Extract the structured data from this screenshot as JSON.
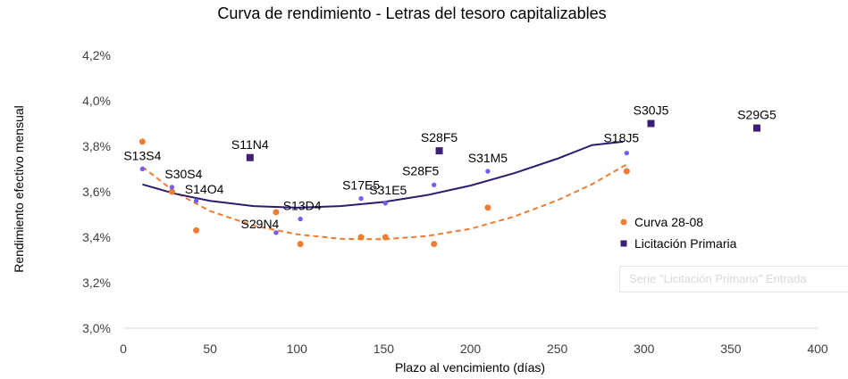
{
  "chart_data": {
    "type": "scatter",
    "title": "Curva de rendimiento  - Letras del tesoro capitalizables",
    "xlabel": "Plazo al vencimiento (días)",
    "ylabel": "Rendimiento efectivo mensual",
    "xlim": [
      0,
      400
    ],
    "ylim": [
      3.0,
      4.2
    ],
    "x_ticks": [
      0,
      50,
      100,
      150,
      200,
      250,
      300,
      350,
      400
    ],
    "x_tick_labels": [
      "0",
      "50",
      "100",
      "150",
      "200",
      "250",
      "300",
      "350",
      "400"
    ],
    "y_ticks": [
      3.0,
      3.2,
      3.4,
      3.6,
      3.8,
      4.0,
      4.2
    ],
    "y_tick_labels": [
      "3,0%",
      "3,2%",
      "3,4%",
      "3,6%",
      "3,8%",
      "4,0%",
      "4,2%"
    ],
    "grid": false,
    "legend_position": "right",
    "series": [
      {
        "name": "Curva 28-08",
        "marker": "circle",
        "color": "#ED7D31",
        "x": [
          11,
          28,
          42,
          88,
          102,
          137,
          151,
          179,
          210,
          290
        ],
        "y": [
          3.82,
          3.6,
          3.43,
          3.51,
          3.37,
          3.4,
          3.4,
          3.37,
          3.53,
          3.69
        ],
        "trendline": {
          "style": "dashed",
          "color": "#ED7D31",
          "x": [
            11,
            30,
            50,
            75,
            100,
            125,
            150,
            175,
            200,
            225,
            250,
            270,
            290
          ],
          "y": [
            3.71,
            3.597,
            3.515,
            3.451,
            3.413,
            3.393,
            3.391,
            3.405,
            3.437,
            3.49,
            3.562,
            3.633,
            3.72
          ]
        }
      },
      {
        "name": "Licitación Primaria",
        "marker": "square",
        "color": "#3C1E78",
        "x": [
          73,
          182,
          304,
          365
        ],
        "y": [
          3.75,
          3.78,
          3.9,
          3.88
        ],
        "labels": [
          "S11N4",
          "S28F5",
          "S30J5",
          "S29G5"
        ]
      },
      {
        "marker": "circle-small",
        "color": "#7B5CF0",
        "x": [
          11,
          28,
          42,
          88,
          102,
          137,
          151,
          179,
          210,
          290
        ],
        "y": [
          3.7,
          3.62,
          3.56,
          3.42,
          3.48,
          3.57,
          3.55,
          3.63,
          3.69,
          3.77
        ],
        "labels": [
          "S13S4",
          "S30S4",
          "S14O4",
          "S29N4",
          "S13D4",
          "S17E5",
          "S31E5",
          "S28F5",
          "S31M5",
          "S18J5"
        ],
        "trendline": {
          "style": "solid",
          "color": "#2E1A6E",
          "x": [
            11,
            30,
            50,
            75,
            100,
            125,
            150,
            175,
            200,
            225,
            250,
            270,
            288
          ],
          "y": [
            3.632,
            3.591,
            3.56,
            3.537,
            3.53,
            3.537,
            3.555,
            3.585,
            3.627,
            3.681,
            3.745,
            3.805,
            3.82
          ]
        }
      }
    ],
    "tooltip_text": "Serie \"Licitación Primaria\" Entrada"
  }
}
